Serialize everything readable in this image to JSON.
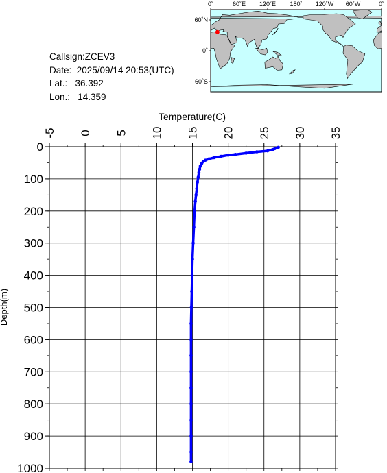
{
  "info": {
    "callsign": "Callsign:ZCEV3",
    "date": "Date:  2025/09/14 20:53(UTC)",
    "lat": "Lat.:   36.392",
    "lon": "Lon.:   14.359"
  },
  "map": {
    "lon_labels": [
      "0˚",
      "60˚E",
      "120˚E",
      "180˚",
      "120˚W",
      "60˚W",
      "0˚"
    ],
    "lat_labels": [
      "60˚N",
      "0˚",
      "60˚S"
    ],
    "station": {
      "lat": 36.392,
      "lon": 14.359
    },
    "colors": {
      "ocean": "#c8ffff",
      "land": "#c0c0c0",
      "marker": "#ff0000"
    }
  },
  "chart_data": {
    "type": "line",
    "xlabel": "Temperature(C)",
    "ylabel": "Depth(m)",
    "xlim": [
      -5,
      35
    ],
    "ylim": [
      1000,
      0
    ],
    "x_ticks": [
      "-5",
      "0",
      "5",
      "10",
      "15",
      "20",
      "25",
      "30",
      "35"
    ],
    "y_ticks": [
      "0",
      "100",
      "200",
      "300",
      "400",
      "500",
      "600",
      "700",
      "800",
      "900",
      "1000"
    ],
    "grid": true,
    "series": [
      {
        "color": "#0000ff",
        "points": [
          [
            27.0,
            2
          ],
          [
            26.8,
            4
          ],
          [
            26.5,
            6
          ],
          [
            26.2,
            9
          ],
          [
            25.5,
            13
          ],
          [
            24.0,
            16
          ],
          [
            22.5,
            20
          ],
          [
            21.0,
            24
          ],
          [
            20.0,
            26
          ],
          [
            19.0,
            30
          ],
          [
            18.0,
            34
          ],
          [
            17.3,
            38
          ],
          [
            16.8,
            42
          ],
          [
            16.5,
            46
          ],
          [
            16.3,
            52
          ],
          [
            16.1,
            60
          ],
          [
            16.0,
            70
          ],
          [
            15.9,
            80
          ],
          [
            15.8,
            95
          ],
          [
            15.7,
            110
          ],
          [
            15.6,
            130
          ],
          [
            15.5,
            150
          ],
          [
            15.4,
            170
          ],
          [
            15.3,
            200
          ],
          [
            15.2,
            250
          ],
          [
            15.1,
            300
          ],
          [
            15.0,
            350
          ],
          [
            14.95,
            400
          ],
          [
            14.9,
            450
          ],
          [
            14.85,
            500
          ],
          [
            14.8,
            550
          ],
          [
            14.8,
            600
          ],
          [
            14.8,
            650
          ],
          [
            14.8,
            700
          ],
          [
            14.8,
            750
          ],
          [
            14.8,
            800
          ],
          [
            14.8,
            850
          ],
          [
            14.8,
            900
          ],
          [
            14.8,
            950
          ],
          [
            14.8,
            980
          ]
        ]
      }
    ]
  }
}
